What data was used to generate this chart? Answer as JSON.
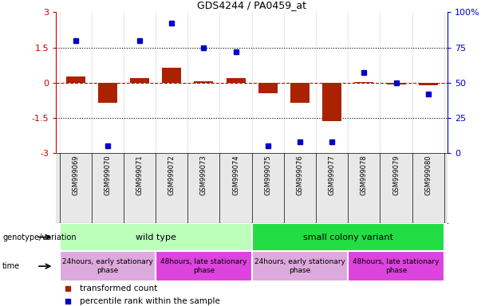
{
  "title": "GDS4244 / PA0459_at",
  "samples": [
    "GSM999069",
    "GSM999070",
    "GSM999071",
    "GSM999072",
    "GSM999073",
    "GSM999074",
    "GSM999075",
    "GSM999076",
    "GSM999077",
    "GSM999078",
    "GSM999079",
    "GSM999080"
  ],
  "bar_values": [
    0.25,
    -0.85,
    0.18,
    0.65,
    0.05,
    0.2,
    -0.45,
    -0.85,
    -1.65,
    0.04,
    -0.07,
    -0.1
  ],
  "dot_values": [
    80,
    5,
    80,
    92,
    75,
    72,
    5,
    8,
    8,
    57,
    50,
    42
  ],
  "ylim_left": [
    -3,
    3
  ],
  "ylim_right": [
    0,
    100
  ],
  "yticks_left": [
    -3,
    -1.5,
    0,
    1.5,
    3
  ],
  "yticks_right": [
    0,
    25,
    50,
    75,
    100
  ],
  "bar_color": "#aa2200",
  "dot_color": "#0000cc",
  "hline_color_zero": "#cc0000",
  "hline_color_other": "#000000",
  "genotype_groups": [
    {
      "label": "wild type",
      "start": 0,
      "end": 5,
      "color": "#bbffbb"
    },
    {
      "label": "small colony variant",
      "start": 6,
      "end": 11,
      "color": "#22dd44"
    }
  ],
  "time_groups": [
    {
      "label": "24hours, early stationary\nphase",
      "start": 0,
      "end": 2,
      "color": "#ddaadd"
    },
    {
      "label": "48hours, late stationary\nphase",
      "start": 3,
      "end": 5,
      "color": "#dd44dd"
    },
    {
      "label": "24hours, early stationary\nphase",
      "start": 6,
      "end": 8,
      "color": "#ddaadd"
    },
    {
      "label": "48hours, late stationary\nphase",
      "start": 9,
      "end": 11,
      "color": "#dd44dd"
    }
  ],
  "legend_bar_label": "transformed count",
  "legend_dot_label": "percentile rank within the sample",
  "genotype_label": "genotype/variation",
  "time_label": "time",
  "right_axis_color": "#0000cc",
  "left_axis_color": "#cc0000",
  "fig_width": 6.13,
  "fig_height": 3.84,
  "dpi": 100
}
